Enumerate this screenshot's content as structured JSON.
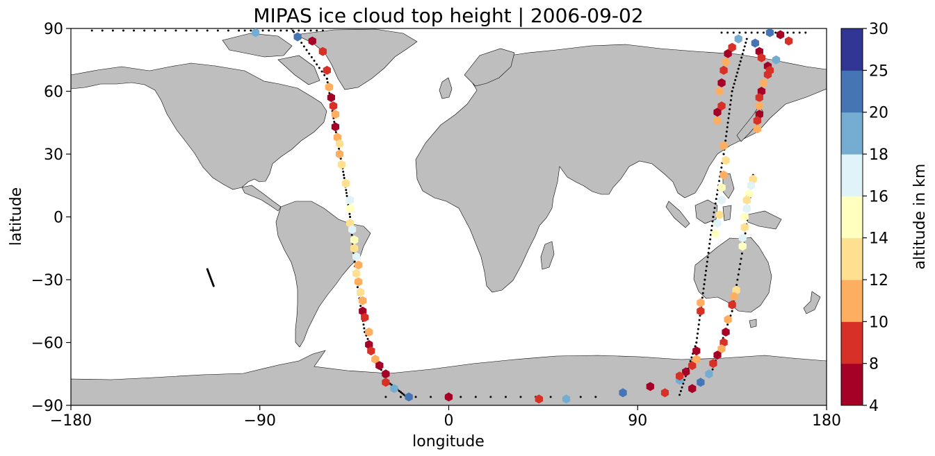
{
  "title": "MIPAS ice cloud top height | 2006-09-02",
  "xlabel": "longitude",
  "ylabel": "latitude",
  "colorbar": {
    "label": "altitude in km",
    "ticks": [
      "4",
      "8",
      "10",
      "12",
      "14",
      "16",
      "18",
      "20",
      "25",
      "30"
    ],
    "colors": [
      "#a50026",
      "#d73027",
      "#f46d43",
      "#fdae61",
      "#fee090",
      "#ffffbf",
      "#e0f3f8",
      "#abd9e9",
      "#74add1",
      "#4575b4",
      "#313695"
    ]
  },
  "land_color": "#bebebe",
  "chart_data": {
    "type": "scatter",
    "x_range": [
      -180,
      180
    ],
    "y_range": [
      -90,
      90
    ],
    "x_ticks": [
      "−180",
      "−90",
      "0",
      "90",
      "180"
    ],
    "y_ticks": [
      "90",
      "60",
      "30",
      "0",
      "−30",
      "−60",
      "−90"
    ],
    "series": [
      {
        "points": [
          [
            -92,
            88
          ],
          [
            -72,
            86
          ],
          [
            -65,
            84
          ],
          [
            -60,
            79
          ],
          [
            -58,
            70
          ],
          [
            -57,
            62
          ],
          [
            -56,
            57
          ],
          [
            -55,
            53
          ],
          [
            -54,
            49
          ],
          [
            -54,
            43
          ],
          [
            -53,
            38
          ],
          [
            -52,
            35
          ],
          [
            -52,
            30
          ],
          [
            -51,
            25
          ],
          [
            -49,
            16
          ],
          [
            -47,
            8
          ],
          [
            -47,
            4
          ],
          [
            -47,
            -3
          ],
          [
            -46,
            -6
          ],
          [
            -45,
            -11
          ],
          [
            -45,
            -15
          ],
          [
            -44,
            -19
          ],
          [
            -43,
            -23
          ],
          [
            -44,
            -27
          ],
          [
            -43,
            -31
          ],
          [
            -42,
            -36
          ],
          [
            -41,
            -40
          ],
          [
            -41,
            -45
          ],
          [
            -40,
            -48
          ],
          [
            -38,
            -55
          ],
          [
            -38,
            -61
          ],
          [
            -37,
            -64
          ],
          [
            -35,
            -68
          ],
          [
            -33,
            -71
          ],
          [
            -30,
            -75
          ],
          [
            -30,
            -79
          ],
          [
            -26,
            -82
          ],
          [
            -19,
            -86
          ],
          [
            0,
            -86
          ],
          [
            43,
            -87
          ],
          [
            56,
            -87
          ],
          [
            83,
            -84
          ],
          [
            96,
            -81
          ],
          [
            103,
            -84
          ],
          [
            110,
            -78
          ],
          [
            113,
            -74
          ],
          [
            116,
            -71
          ],
          [
            118,
            -68
          ],
          [
            118,
            -64
          ],
          [
            120,
            -45
          ],
          [
            120,
            -41
          ],
          [
            128,
            -3
          ],
          [
            127,
            -8
          ],
          [
            129,
            1
          ],
          [
            130,
            8
          ],
          [
            130,
            14
          ],
          [
            131,
            20
          ],
          [
            132,
            27
          ],
          [
            131,
            34
          ],
          [
            128,
            46
          ],
          [
            128,
            50
          ],
          [
            130,
            53
          ],
          [
            129,
            60
          ],
          [
            130,
            64
          ],
          [
            131,
            70
          ],
          [
            132,
            74
          ],
          [
            133,
            78
          ],
          [
            135,
            81
          ],
          [
            138,
            85
          ],
          [
            146,
            83
          ],
          [
            148,
            79
          ],
          [
            149,
            76
          ],
          [
            152,
            72
          ],
          [
            152,
            68
          ],
          [
            150,
            64
          ],
          [
            149,
            60
          ],
          [
            148,
            57
          ],
          [
            148,
            53
          ],
          [
            148,
            49
          ],
          [
            147,
            46
          ],
          [
            147,
            42
          ],
          [
            153,
            88
          ],
          [
            158,
            87
          ],
          [
            162,
            84
          ],
          [
            156,
            75
          ],
          [
            153,
            70
          ],
          [
            145,
            18
          ],
          [
            144,
            15
          ],
          [
            143,
            11
          ],
          [
            142,
            8
          ],
          [
            142,
            4
          ],
          [
            141,
            0
          ],
          [
            141,
            -5
          ],
          [
            140,
            -10
          ],
          [
            140,
            -14
          ],
          [
            137,
            -35
          ],
          [
            136,
            -38
          ],
          [
            135,
            -42
          ],
          [
            133,
            -49
          ],
          [
            132,
            -55
          ],
          [
            131,
            -60
          ],
          [
            130,
            -63
          ],
          [
            128,
            -66
          ],
          [
            126,
            -70
          ],
          [
            124,
            -75
          ],
          [
            120,
            -79
          ],
          [
            116,
            -82
          ],
          [
            110,
            -76
          ]
        ]
      }
    ]
  }
}
